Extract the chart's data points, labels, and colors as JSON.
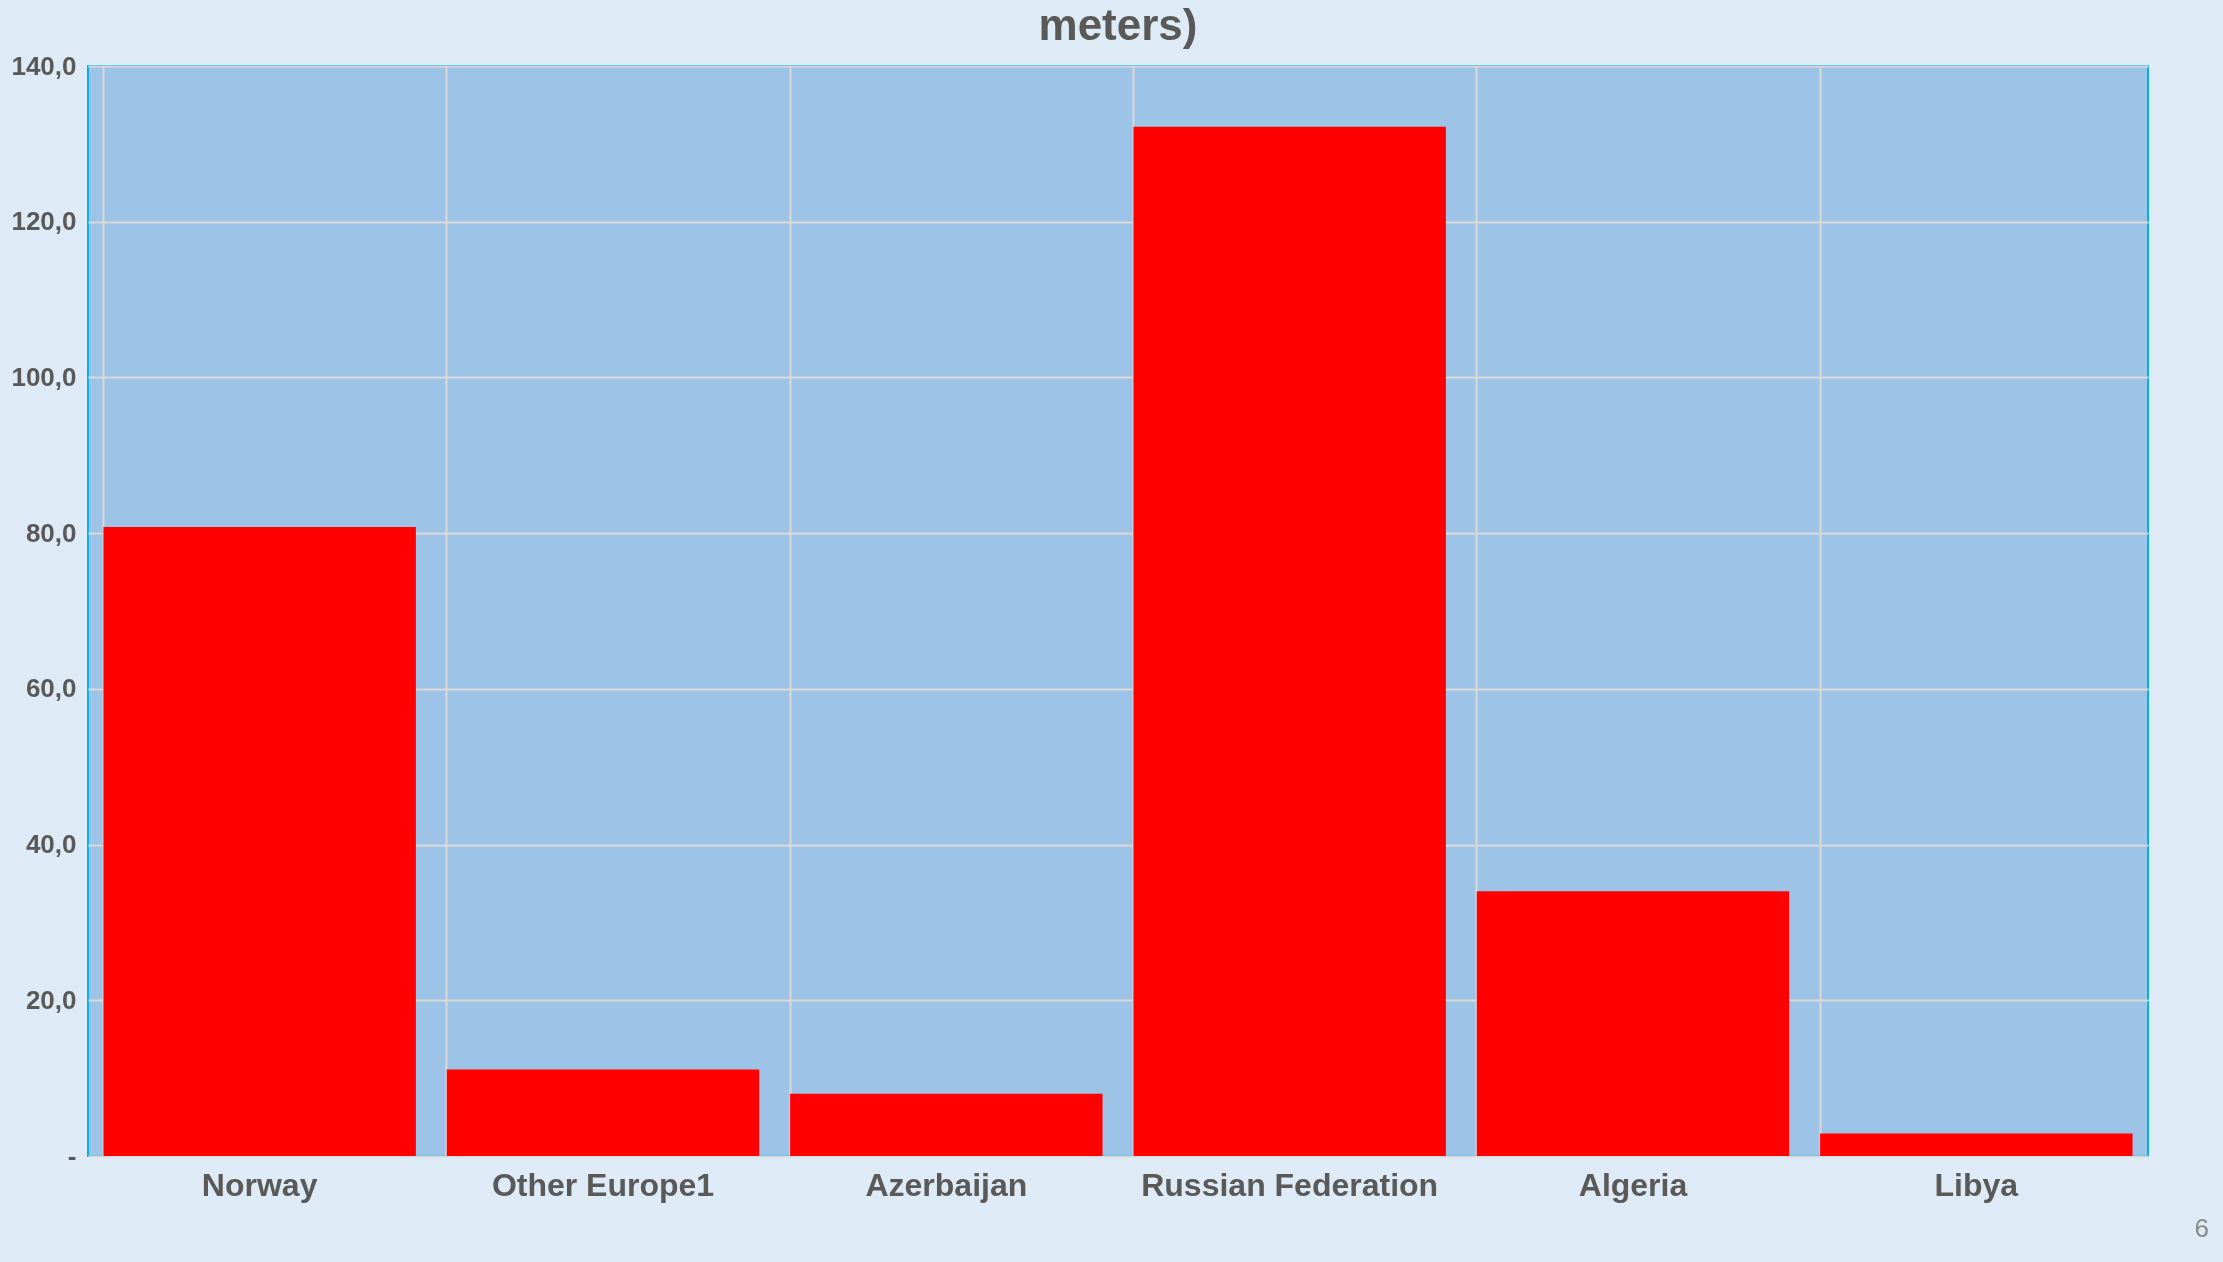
{
  "chart_data": {
    "type": "bar",
    "title": "meters)",
    "categories": [
      "Norway",
      "Other Europe1",
      "Azerbaijan",
      "Russian Federation",
      "Algeria",
      "Libya"
    ],
    "values": [
      80.8,
      11.1,
      8.0,
      132.2,
      34.0,
      2.9
    ],
    "color": "#ff0000",
    "ylim": [
      0,
      140
    ],
    "yticks": [
      {
        "value": 0,
        "label": "-"
      },
      {
        "value": 20,
        "label": "20,0"
      },
      {
        "value": 40,
        "label": "40,0"
      },
      {
        "value": 60,
        "label": "60,0"
      },
      {
        "value": 80,
        "label": "80,0"
      },
      {
        "value": 100,
        "label": "100,0"
      },
      {
        "value": 120,
        "label": "120,0"
      },
      {
        "value": 140,
        "label": "140,0"
      }
    ],
    "grid": true,
    "annotations": [
      "6"
    ]
  }
}
